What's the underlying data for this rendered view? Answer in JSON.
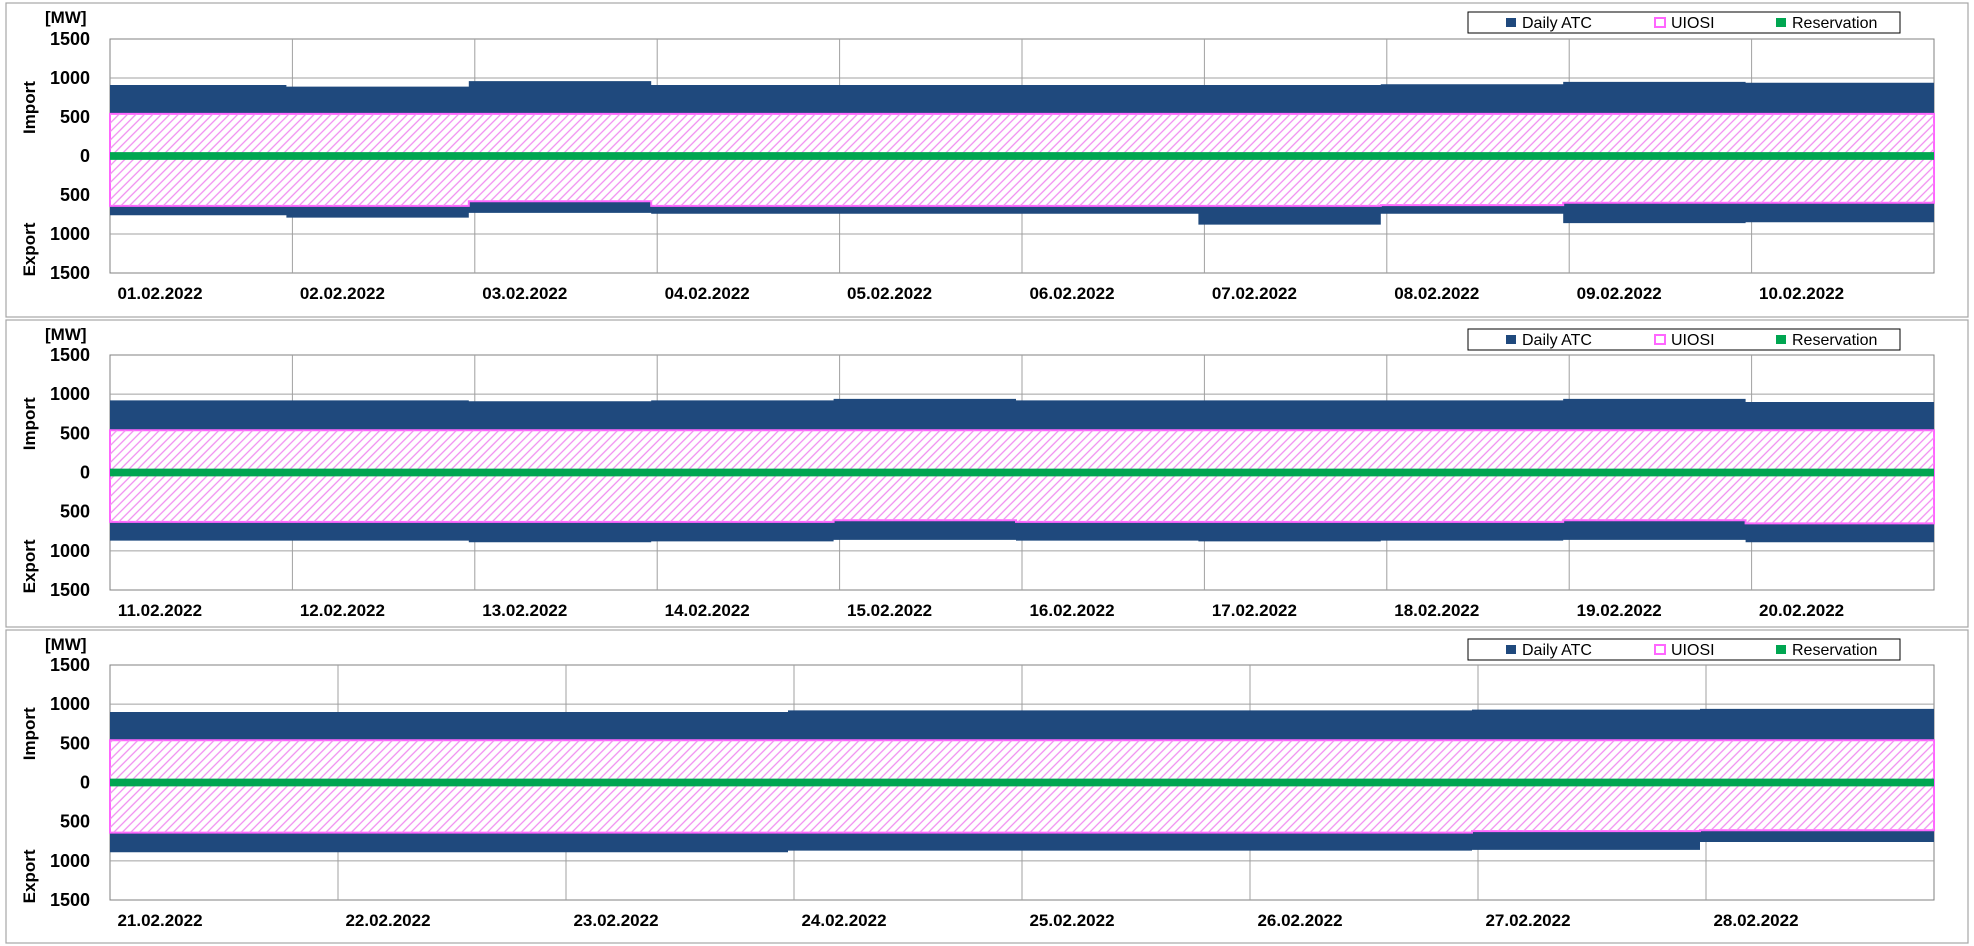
{
  "chart_data": [
    {
      "type": "area",
      "unit_label": "[MW]",
      "ylabel_import": "Import",
      "ylabel_export": "Export",
      "yticks": [
        "1500",
        "1000",
        "500",
        "0",
        "500",
        "1000",
        "1500"
      ],
      "ylim": [
        -1500,
        1500
      ],
      "legend": [
        "Daily ATC",
        "UIOSI",
        "Reservation"
      ],
      "legend_position": "top-right",
      "colors": {
        "atc": "#1f497d",
        "uiosi": "#ff66ff",
        "reservation": "#00a651"
      },
      "categories": [
        "01.02.2022",
        "02.02.2022",
        "03.02.2022",
        "04.02.2022",
        "05.02.2022",
        "06.02.2022",
        "07.02.2022",
        "08.02.2022",
        "09.02.2022",
        "10.02.2022"
      ],
      "series": [
        {
          "name": "Daily ATC",
          "import": [
            910,
            890,
            960,
            910,
            910,
            910,
            910,
            920,
            950,
            940
          ],
          "export": [
            -760,
            -790,
            -730,
            -740,
            -740,
            -740,
            -880,
            -740,
            -860,
            -850
          ]
        },
        {
          "name": "UIOSI",
          "import": [
            540,
            540,
            540,
            540,
            540,
            540,
            540,
            540,
            540,
            540
          ],
          "export": [
            -640,
            -640,
            -580,
            -640,
            -640,
            -640,
            -640,
            -630,
            -600,
            -600
          ]
        },
        {
          "name": "Reservation",
          "import": [
            50,
            50,
            50,
            50,
            50,
            50,
            50,
            50,
            50,
            50
          ],
          "export": [
            -50,
            -50,
            -50,
            -50,
            -50,
            -50,
            -50,
            -50,
            -50,
            -50
          ]
        }
      ]
    },
    {
      "type": "area",
      "unit_label": "[MW]",
      "ylabel_import": "Import",
      "ylabel_export": "Export",
      "yticks": [
        "1500",
        "1000",
        "500",
        "0",
        "500",
        "1000",
        "1500"
      ],
      "ylim": [
        -1500,
        1500
      ],
      "legend": [
        "Daily ATC",
        "UIOSI",
        "Reservation"
      ],
      "legend_position": "top-right",
      "colors": {
        "atc": "#1f497d",
        "uiosi": "#ff66ff",
        "reservation": "#00a651"
      },
      "categories": [
        "11.02.2022",
        "12.02.2022",
        "13.02.2022",
        "14.02.2022",
        "15.02.2022",
        "16.02.2022",
        "17.02.2022",
        "18.02.2022",
        "19.02.2022",
        "20.02.2022"
      ],
      "series": [
        {
          "name": "Daily ATC",
          "import": [
            920,
            920,
            910,
            920,
            940,
            920,
            920,
            920,
            940,
            900
          ],
          "export": [
            -870,
            -870,
            -890,
            -880,
            -860,
            -870,
            -880,
            -870,
            -860,
            -890
          ]
        },
        {
          "name": "UIOSI",
          "import": [
            540,
            540,
            540,
            540,
            540,
            540,
            540,
            540,
            540,
            540
          ],
          "export": [
            -630,
            -630,
            -630,
            -630,
            -610,
            -630,
            -630,
            -630,
            -610,
            -650
          ]
        },
        {
          "name": "Reservation",
          "import": [
            50,
            50,
            50,
            50,
            50,
            50,
            50,
            50,
            50,
            50
          ],
          "export": [
            -50,
            -50,
            -50,
            -50,
            -50,
            -50,
            -50,
            -50,
            -50,
            -50
          ]
        }
      ]
    },
    {
      "type": "area",
      "unit_label": "[MW]",
      "ylabel_import": "Import",
      "ylabel_export": "Export",
      "yticks": [
        "1500",
        "1000",
        "500",
        "0",
        "500",
        "1000",
        "1500"
      ],
      "ylim": [
        -1500,
        1500
      ],
      "legend": [
        "Daily ATC",
        "UIOSI",
        "Reservation"
      ],
      "legend_position": "top-right",
      "colors": {
        "atc": "#1f497d",
        "uiosi": "#ff66ff",
        "reservation": "#00a651"
      },
      "categories": [
        "21.02.2022",
        "22.02.2022",
        "23.02.2022",
        "24.02.2022",
        "25.02.2022",
        "26.02.2022",
        "27.02.2022",
        "28.02.2022"
      ],
      "series": [
        {
          "name": "Daily ATC",
          "import": [
            900,
            900,
            900,
            920,
            920,
            920,
            930,
            940
          ],
          "export": [
            -890,
            -890,
            -890,
            -870,
            -870,
            -870,
            -860,
            -760
          ]
        },
        {
          "name": "UIOSI",
          "import": [
            540,
            540,
            540,
            540,
            540,
            540,
            540,
            540
          ],
          "export": [
            -640,
            -640,
            -640,
            -640,
            -640,
            -640,
            -620,
            -610
          ]
        },
        {
          "name": "Reservation",
          "import": [
            50,
            50,
            50,
            50,
            50,
            50,
            50,
            50
          ],
          "export": [
            -50,
            -50,
            -50,
            -50,
            -50,
            -50,
            -50,
            -50
          ]
        }
      ]
    }
  ]
}
